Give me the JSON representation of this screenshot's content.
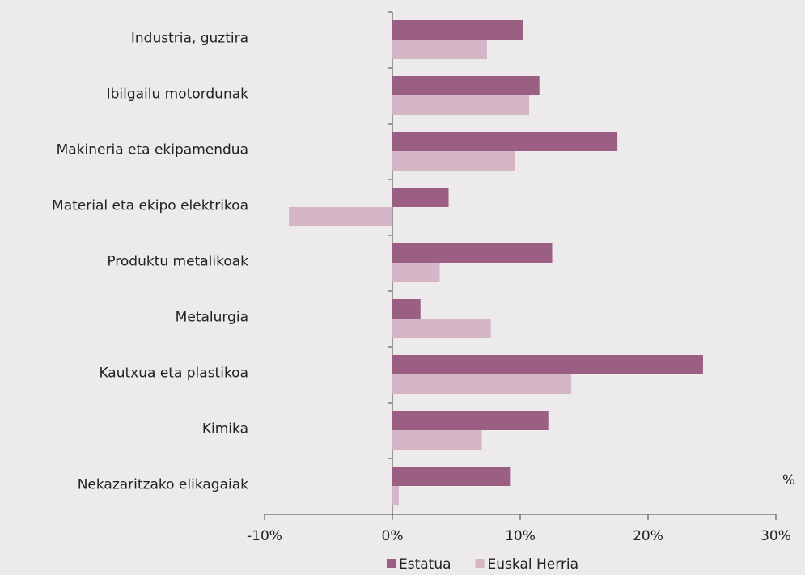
{
  "chart_data": {
    "type": "bar",
    "orientation": "horizontal",
    "categories": [
      "Industria, guztira",
      "Ibilgailu motordunak",
      "Makineria eta ekipamendua",
      "Material eta ekipo elektrikoa",
      "Produktu metalikoak",
      "Metalurgia",
      "Kautxua eta plastikoa",
      "Kimika",
      "Nekazaritzako elikagaiak"
    ],
    "series": [
      {
        "name": "Estatua",
        "color": "#9b5f83",
        "values": [
          10.2,
          11.5,
          17.6,
          4.4,
          12.5,
          2.2,
          24.3,
          12.2,
          9.2
        ]
      },
      {
        "name": "Euskal Herria",
        "color": "#d4b6c7",
        "values": [
          7.4,
          10.7,
          9.6,
          -8.1,
          3.7,
          7.7,
          14.0,
          7.0,
          0.5
        ]
      }
    ],
    "xlim": [
      -10,
      30
    ],
    "xticks": [
      {
        "value": -10,
        "label": "-10%"
      },
      {
        "value": 0,
        "label": "0%"
      },
      {
        "value": 10,
        "label": "10%"
      },
      {
        "value": 20,
        "label": "20%"
      },
      {
        "value": 30,
        "label": "30%"
      }
    ],
    "unit_label": "%",
    "legend": "bottom"
  }
}
